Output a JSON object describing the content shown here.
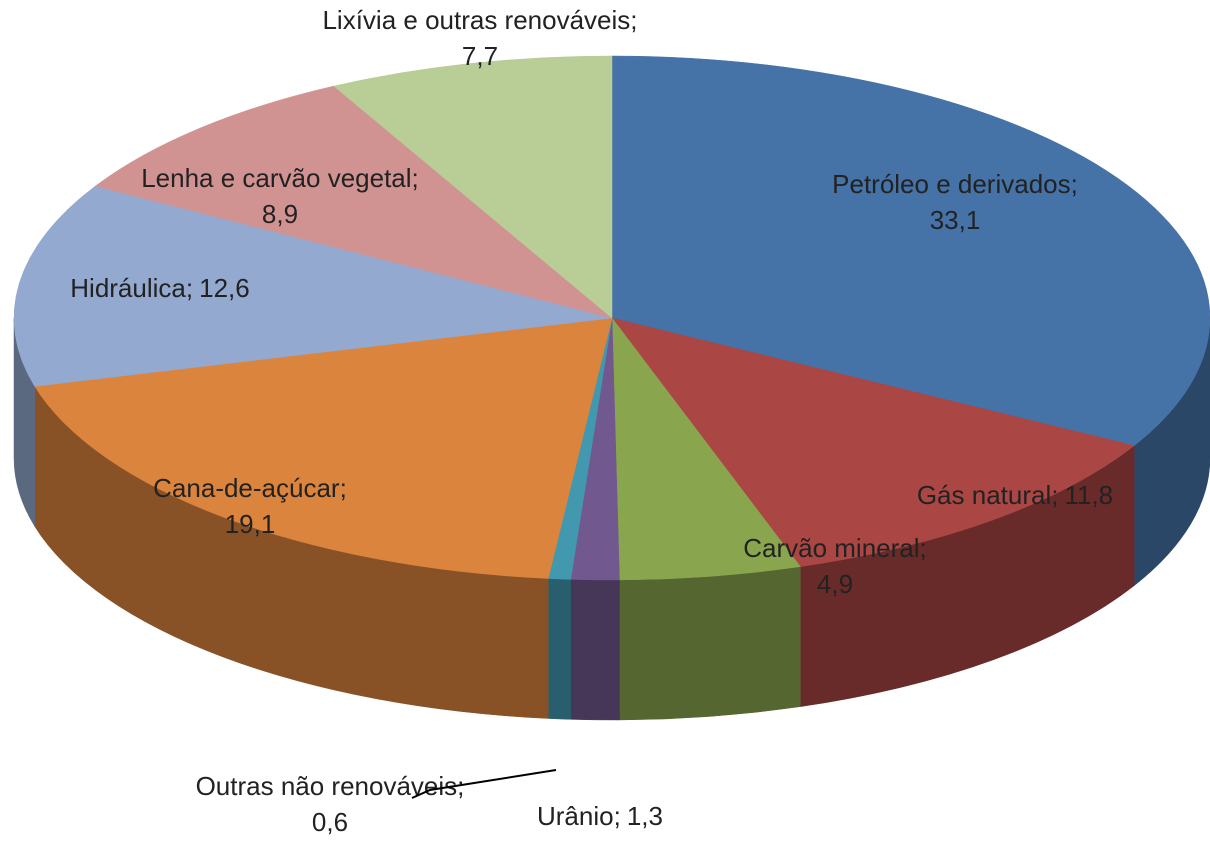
{
  "chart_data": {
    "type": "pie",
    "three_d": true,
    "categories": [
      "Petróleo e derivados",
      "Gás natural",
      "Carvão mineral",
      "Urânio",
      "Outras não renováveis",
      "Cana-de-açúcar",
      "Hidráulica",
      "Lenha e carvão vegetal",
      "Lixívia e outras renováveis"
    ],
    "values": [
      33.1,
      11.8,
      4.9,
      1.3,
      0.6,
      19.1,
      12.6,
      8.9,
      7.7
    ],
    "value_labels": [
      "33,1",
      "11,8",
      "4,9",
      "1,3",
      "0,6",
      "19,1",
      "12,6",
      "8,9",
      "7,7"
    ],
    "label_separator": ";",
    "colors": [
      "#4572a7",
      "#aa4643",
      "#89a54e",
      "#71588f",
      "#4198af",
      "#db843d",
      "#93a9cf",
      "#d19392",
      "#b9cd96"
    ]
  }
}
